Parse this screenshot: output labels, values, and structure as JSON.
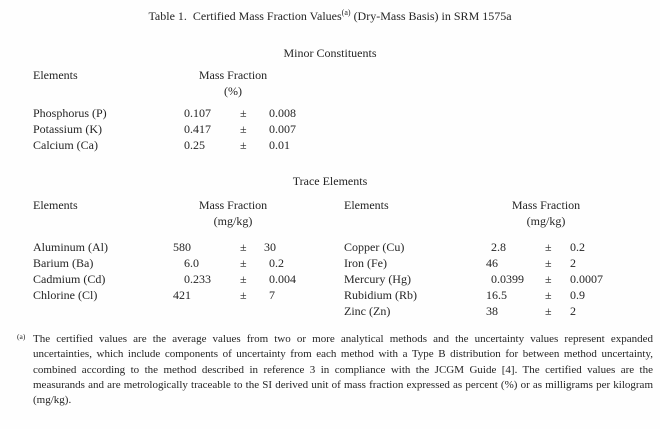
{
  "title": {
    "prefix": "Table 1.  Certified Mass Fraction Values",
    "sup": "(a)",
    "suffix": " (Dry-Mass Basis) in SRM 1575a"
  },
  "minor": {
    "heading": "Minor Constituents",
    "table": {
      "col_elements": "Elements",
      "col_mass_fraction": "Mass Fraction",
      "unit": "(%)",
      "pm": "±",
      "rows": [
        {
          "element": "Phosphorus (P)",
          "value": "0.107",
          "uncertainty": "0.008"
        },
        {
          "element": "Potassium (K)",
          "value": "0.417",
          "uncertainty": "0.007"
        },
        {
          "element": "Calcium (Ca)",
          "value": "0.25",
          "uncertainty": "0.01"
        }
      ]
    }
  },
  "trace": {
    "heading": "Trace Elements",
    "left_table": {
      "col_elements": "Elements",
      "col_mass_fraction": "Mass Fraction",
      "unit": "(mg/kg)",
      "pm": "±",
      "rows": [
        {
          "element": "Aluminum (Al)",
          "value": "580",
          "uncertainty": "30"
        },
        {
          "element": "Barium (Ba)",
          "value": "6.0",
          "uncertainty": "0.2"
        },
        {
          "element": "Cadmium (Cd)",
          "value": "0.233",
          "uncertainty": "0.004"
        },
        {
          "element": "Chlorine (Cl)",
          "value": "421",
          "uncertainty": "7"
        }
      ]
    },
    "right_table": {
      "col_elements": "Elements",
      "col_mass_fraction": "Mass Fraction",
      "unit": "(mg/kg)",
      "pm": "±",
      "rows": [
        {
          "element": "Copper (Cu)",
          "value": "2.8",
          "uncertainty": "0.2"
        },
        {
          "element": "Iron (Fe)",
          "value": "46",
          "uncertainty": "2"
        },
        {
          "element": "Mercury (Hg)",
          "value": "0.0399",
          "uncertainty": "0.0007"
        },
        {
          "element": "Rubidium (Rb)",
          "value": "16.5",
          "uncertainty": "0.9"
        },
        {
          "element": "Zinc (Zn)",
          "value": "38",
          "uncertainty": "2"
        }
      ]
    }
  },
  "footnote": {
    "marker": "(a)",
    "text": "The certified values are the average values from two or more analytical methods and the uncertainty values represent expanded uncertainties, which include components of uncertainty from each method with a Type B distribution for between method uncertainty, combined according to the method described in reference 3 in compliance with the JCGM Guide [4].  The certified values are the measurands and are metrologically traceable to the SI derived unit of mass fraction expressed as percent (%) or as milligrams per kilogram (mg/kg)."
  },
  "colors": {
    "text": "#242424",
    "background": "#fefefe"
  }
}
